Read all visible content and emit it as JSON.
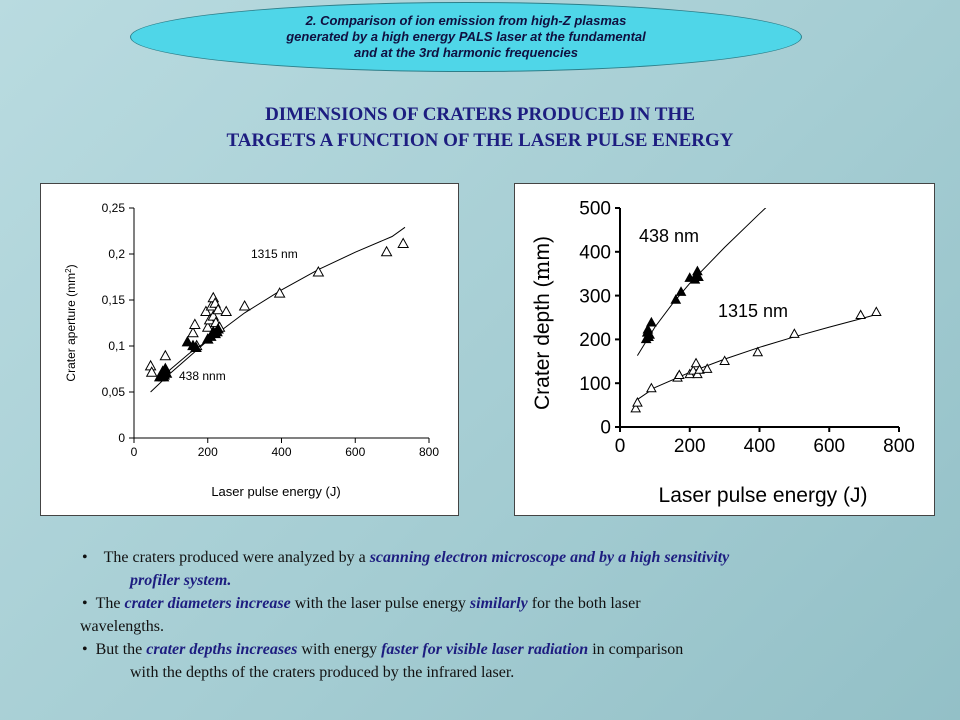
{
  "banner": {
    "line1": "2. Comparison of ion emission from high-Z plasmas",
    "line2": "generated by a high energy PALS laser at the fundamental",
    "line3": "and at the 3rd harmonic frequencies"
  },
  "heading": {
    "line1": "DIMENSIONS OF CRATERS PRODUCED IN THE",
    "line2": "TARGETS A FUNCTION OF THE LASER PULSE ENERGY"
  },
  "chart_data": [
    {
      "type": "scatter",
      "title": "",
      "xlabel": "Laser pulse energy (J)",
      "ylabel": "Crater aperture (mm",
      "ylabel_sup": "2",
      "ylabel_close": ")",
      "xlim": [
        0,
        800
      ],
      "ylim": [
        0,
        0.25
      ],
      "xticks": [
        "0",
        "200",
        "400",
        "600",
        "800"
      ],
      "yticks": [
        "0",
        "0,05",
        "0,1",
        "0,15",
        "0,2",
        "0,25"
      ],
      "grid": false,
      "series": [
        {
          "name": "1315 nm",
          "marker": "open-triangle",
          "points": [
            [
              45,
              0.078
            ],
            [
              48,
              0.071
            ],
            [
              85,
              0.089
            ],
            [
              160,
              0.114
            ],
            [
              165,
              0.123
            ],
            [
              170,
              0.1
            ],
            [
              195,
              0.137
            ],
            [
              200,
              0.12
            ],
            [
              205,
              0.128
            ],
            [
              210,
              0.143
            ],
            [
              215,
              0.152
            ],
            [
              215,
              0.132
            ],
            [
              220,
              0.146
            ],
            [
              222,
              0.125
            ],
            [
              228,
              0.139
            ],
            [
              232,
              0.12
            ],
            [
              250,
              0.137
            ],
            [
              300,
              0.143
            ],
            [
              395,
              0.157
            ],
            [
              500,
              0.18
            ],
            [
              685,
              0.202
            ],
            [
              730,
              0.211
            ]
          ],
          "fit": [
            [
              45,
              0.05
            ],
            [
              100,
              0.071
            ],
            [
              200,
              0.106
            ],
            [
              300,
              0.136
            ],
            [
              400,
              0.161
            ],
            [
              500,
              0.183
            ],
            [
              600,
              0.202
            ],
            [
              700,
              0.219
            ],
            [
              735,
              0.229
            ]
          ]
        },
        {
          "name": "438 nnm",
          "marker": "filled-triangle",
          "points": [
            [
              70,
              0.066
            ],
            [
              75,
              0.068
            ],
            [
              78,
              0.072
            ],
            [
              80,
              0.066
            ],
            [
              82,
              0.068
            ],
            [
              85,
              0.075
            ],
            [
              88,
              0.07
            ],
            [
              145,
              0.104
            ],
            [
              160,
              0.1
            ],
            [
              168,
              0.098
            ],
            [
              200,
              0.107
            ],
            [
              208,
              0.11
            ],
            [
              215,
              0.115
            ],
            [
              220,
              0.113
            ],
            [
              225,
              0.115
            ],
            [
              228,
              0.118
            ]
          ],
          "fit": [
            [
              65,
              0.062
            ],
            [
              100,
              0.075
            ],
            [
              150,
              0.092
            ],
            [
              200,
              0.106
            ],
            [
              230,
              0.116
            ]
          ]
        }
      ],
      "annotations": [
        "1315 nm",
        "438 nnm"
      ]
    },
    {
      "type": "scatter",
      "title": "",
      "xlabel": "Laser pulse energy (J)",
      "ylabel_pre": "Crater depth (",
      "ylabel_mu": "m",
      "ylabel_post": "m)",
      "xlim": [
        0,
        800
      ],
      "ylim": [
        0,
        500
      ],
      "xticks": [
        "0",
        "200",
        "400",
        "600",
        "800"
      ],
      "yticks": [
        "0",
        "100",
        "200",
        "300",
        "400",
        "500"
      ],
      "grid": false,
      "series": [
        {
          "name": "438 nm",
          "marker": "filled-triangle",
          "points": [
            [
              75,
              200
            ],
            [
              78,
              215
            ],
            [
              80,
              222
            ],
            [
              82,
              205
            ],
            [
              85,
              210
            ],
            [
              90,
              238
            ],
            [
              160,
              290
            ],
            [
              175,
              308
            ],
            [
              200,
              340
            ],
            [
              215,
              336
            ],
            [
              220,
              348
            ],
            [
              222,
              355
            ],
            [
              225,
              342
            ]
          ],
          "fit": [
            [
              50,
              163
            ],
            [
              100,
              228
            ],
            [
              150,
              281
            ],
            [
              200,
              328
            ],
            [
              300,
              410
            ],
            [
              400,
              487
            ],
            [
              420,
              502
            ]
          ]
        },
        {
          "name": "1315 nm",
          "marker": "open-triangle",
          "points": [
            [
              45,
              42
            ],
            [
              50,
              55
            ],
            [
              90,
              88
            ],
            [
              165,
              112
            ],
            [
              170,
              118
            ],
            [
              200,
              120
            ],
            [
              210,
              128
            ],
            [
              218,
              145
            ],
            [
              222,
              120
            ],
            [
              228,
              130
            ],
            [
              250,
              132
            ],
            [
              300,
              150
            ],
            [
              395,
              170
            ],
            [
              500,
              212
            ],
            [
              690,
              255
            ],
            [
              735,
              262
            ]
          ],
          "fit": [
            [
              45,
              60
            ],
            [
              100,
              90
            ],
            [
              200,
              125
            ],
            [
              300,
              155
            ],
            [
              400,
              182
            ],
            [
              500,
              206
            ],
            [
              600,
              228
            ],
            [
              700,
              249
            ],
            [
              740,
              258
            ]
          ]
        }
      ],
      "annotations": [
        "438 nm",
        "1315 nm"
      ]
    }
  ],
  "bullets": {
    "b1_a": "The craters produced were analyzed by a",
    "b1_b": "scanning electron microscope and by a high sensitivity",
    "b1_c": "profiler system.",
    "b2_a": "The",
    "b2_b": "crater diameters increase",
    "b2_c": "with the laser pulse energy",
    "b2_d": "similarly",
    "b2_e": "for the both laser",
    "b2_f": "wavelengths.",
    "b3_a": "But the",
    "b3_b": "crater depths increases",
    "b3_c": "with energy",
    "b3_d": "faster for visible laser radiation",
    "b3_e": "in comparison",
    "b3_f": "with the depths of the craters produced by the infrared laser."
  },
  "colors": {
    "banner_fill": "#4fd6e8",
    "heading": "#1d1d80",
    "highlight": "#1d1d80"
  }
}
